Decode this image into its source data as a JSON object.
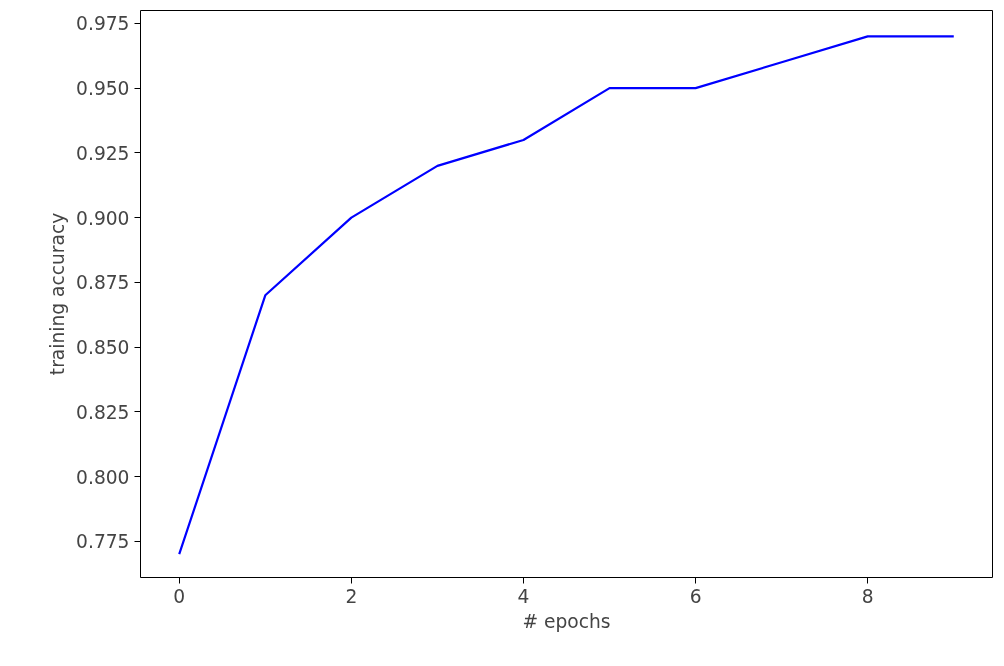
{
  "chart_data": {
    "type": "line",
    "xlabel": "# epochs",
    "ylabel": "training accuracy",
    "x": [
      0,
      1,
      2,
      3,
      4,
      5,
      6,
      7,
      8,
      9
    ],
    "series": [
      {
        "color": "#0000ff",
        "values": [
          0.77,
          0.87,
          0.9,
          0.92,
          0.93,
          0.95,
          0.95,
          0.96,
          0.97,
          0.97
        ]
      }
    ],
    "xlim": [
      -0.45,
      9.45
    ],
    "ylim": [
      0.761,
      0.98
    ],
    "xticks": [
      0,
      2,
      4,
      6,
      8
    ],
    "yticks": [
      {
        "value": 0.775,
        "label": "0.775"
      },
      {
        "value": 0.8,
        "label": "0.800"
      },
      {
        "value": 0.825,
        "label": "0.825"
      },
      {
        "value": 0.85,
        "label": "0.850"
      },
      {
        "value": 0.875,
        "label": "0.875"
      },
      {
        "value": 0.9,
        "label": "0.900"
      },
      {
        "value": 0.925,
        "label": "0.925"
      },
      {
        "value": 0.95,
        "label": "0.950"
      },
      {
        "value": 0.975,
        "label": "0.975"
      }
    ],
    "grid": false,
    "line_style": "solid"
  }
}
